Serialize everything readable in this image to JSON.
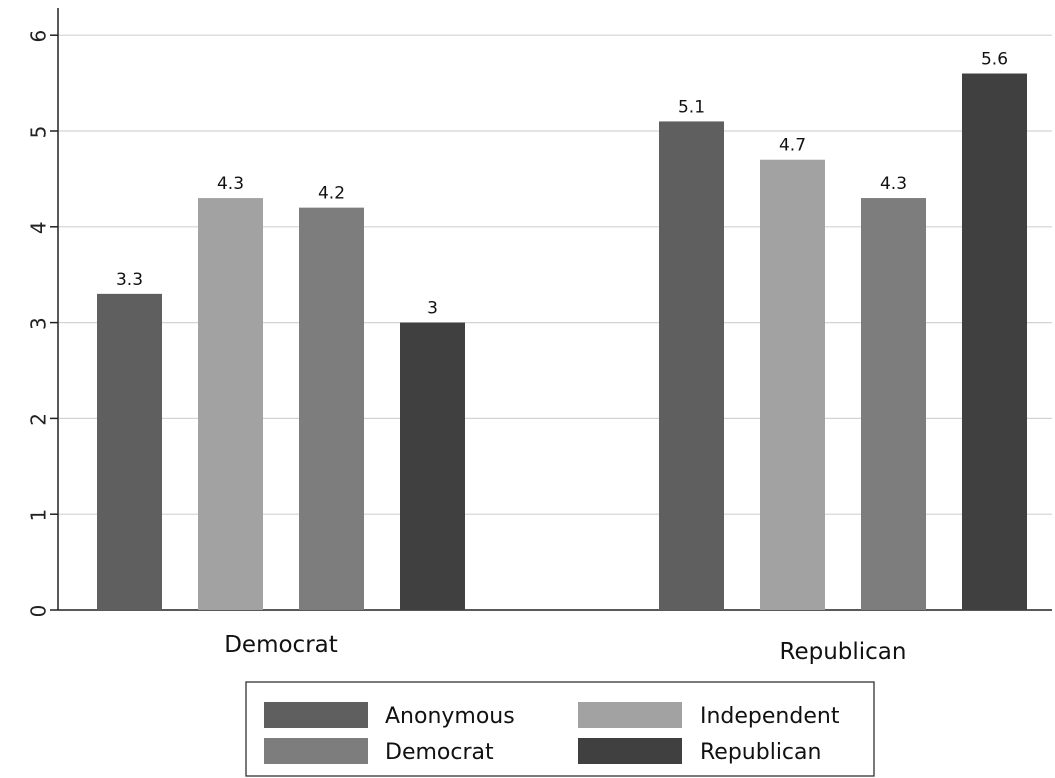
{
  "chart_data": {
    "type": "bar",
    "categories": [
      "Democrat",
      "Republican"
    ],
    "series": [
      {
        "name": "Anonymous",
        "values": [
          3.3,
          5.1
        ],
        "color": "#5f5f5f"
      },
      {
        "name": "Independent",
        "values": [
          4.3,
          4.7
        ],
        "color": "#a2a2a2"
      },
      {
        "name": "Democrat",
        "values": [
          4.2,
          4.3
        ],
        "color": "#7d7d7d"
      },
      {
        "name": "Republican",
        "values": [
          3.0,
          5.6
        ],
        "color": "#404040"
      }
    ],
    "value_labels": [
      [
        "3.3",
        "5.1"
      ],
      [
        "4.3",
        "4.7"
      ],
      [
        "4.2",
        "4.3"
      ],
      [
        "3",
        "5.6"
      ]
    ],
    "yticks": [
      "0",
      "1",
      "2",
      "3",
      "4",
      "5",
      "6"
    ],
    "ylim": [
      0,
      6.25
    ],
    "grid": true,
    "legend_position": "bottom",
    "title": "",
    "xlabel": "",
    "ylabel": ""
  }
}
